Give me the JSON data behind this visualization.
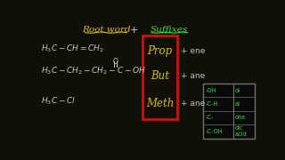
{
  "bg_color": "#111008",
  "title_root": "Root word",
  "title_plus": "+",
  "title_suffix": "Suffixes",
  "title_color_root": "#d4c020",
  "title_color_suffix": "#40e040",
  "title_color_plus": "#d0d0d0",
  "root_words": [
    "Prop",
    "But",
    "Meth"
  ],
  "root_color": "#d4c020",
  "suffixes": [
    "+ ene",
    "+ ane",
    "+ ane"
  ],
  "suffix_color": "#c0c0c0",
  "box_color": "#cc1010",
  "chem_color": "#c8c8c8",
  "table_groups": [
    "-OH",
    "-C-H",
    "-C-",
    "-C-OH"
  ],
  "table_names": [
    "ol",
    "al",
    "one",
    "oic\nacid"
  ],
  "table_color": "#30e030",
  "table_bg": "#0a0a0a",
  "table_border": "#707070",
  "underline_root_color": "#d4c020",
  "underline_suffix_color": "#40e040"
}
